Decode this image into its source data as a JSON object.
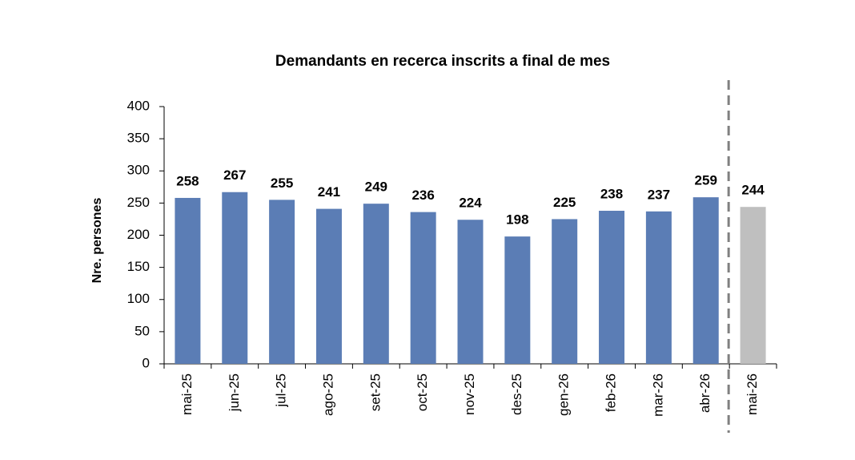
{
  "chart_data": {
    "type": "bar",
    "title": "Demandants en recerca inscrits  a final de mes",
    "y_label": "Nre. persones",
    "categories": [
      "mai-25",
      "jun-25",
      "jul-25",
      "ago-25",
      "set-25",
      "oct-25",
      "nov-25",
      "des-25",
      "gen-26",
      "feb-26",
      "mar-26",
      "abr-26",
      "mai-26"
    ],
    "values": [
      258,
      267,
      255,
      241,
      249,
      236,
      224,
      198,
      225,
      238,
      237,
      259,
      244
    ],
    "colors": [
      "#5b7db5",
      "#5b7db5",
      "#5b7db5",
      "#5b7db5",
      "#5b7db5",
      "#5b7db5",
      "#5b7db5",
      "#5b7db5",
      "#5b7db5",
      "#5b7db5",
      "#5b7db5",
      "#5b7db5",
      "#bfbfbf"
    ],
    "label_colors": [
      "#000000",
      "#000000",
      "#000000",
      "#000000",
      "#000000",
      "#000000",
      "#000000",
      "#000000",
      "#000000",
      "#000000",
      "#000000",
      "#000000",
      "#3a3a1a"
    ],
    "ylim": [
      0,
      400
    ],
    "yticks": [
      0,
      50,
      100,
      150,
      200,
      250,
      300,
      350,
      400
    ],
    "grid": false
  }
}
